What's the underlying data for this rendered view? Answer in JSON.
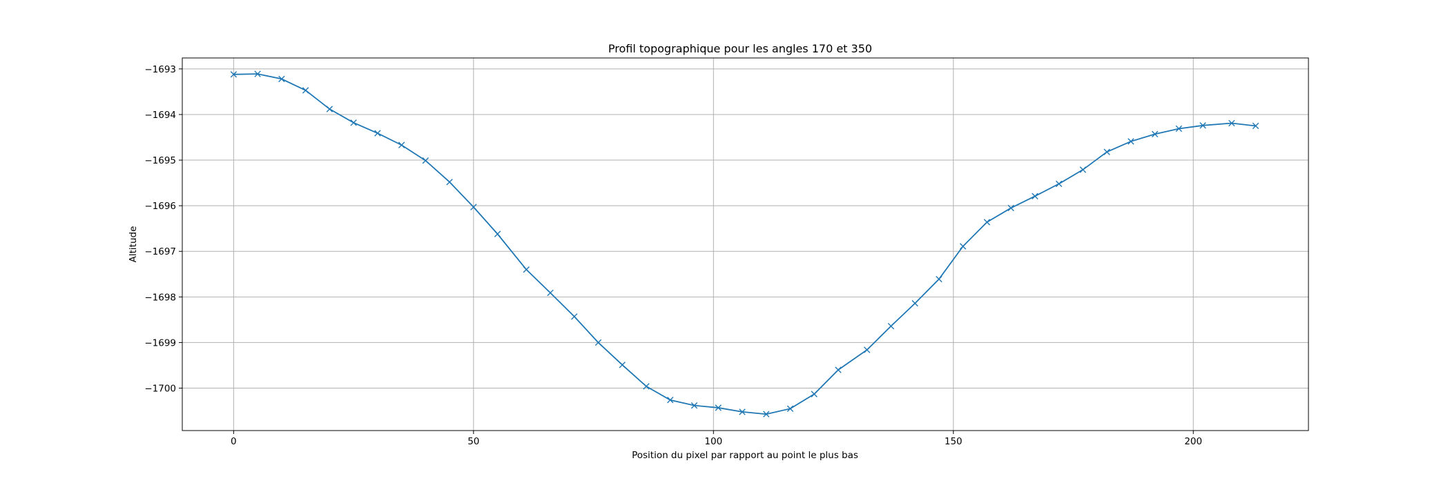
{
  "chart_data": {
    "type": "line",
    "title": "Profil topographique pour les angles 170 et 350",
    "xlabel": "Position du pixel par rapport au point le plus bas",
    "ylabel": "Altitude",
    "xlim": [
      -10.7,
      224
    ],
    "ylim": [
      -1700.93,
      -1692.76
    ],
    "grid": true,
    "marker": "x",
    "color": "#1f77b4",
    "x_ticks": [
      0,
      50,
      100,
      150,
      200
    ],
    "y_ticks": [
      -1693,
      -1694,
      -1695,
      -1696,
      -1697,
      -1698,
      -1699,
      -1700
    ],
    "x_tick_labels": [
      "0",
      "50",
      "100",
      "150",
      "200"
    ],
    "y_tick_labels": [
      "−1693",
      "−1694",
      "−1695",
      "−1696",
      "−1697",
      "−1698",
      "−1699",
      "−1700"
    ],
    "series": [
      {
        "x": [
          0,
          5,
          10,
          15,
          20,
          25,
          30,
          35,
          40,
          45,
          50,
          55,
          61,
          66,
          71,
          76,
          81,
          86,
          91,
          96,
          101,
          106,
          111,
          116,
          121,
          126,
          132,
          137,
          142,
          147,
          152,
          157,
          162,
          167,
          172,
          177,
          182,
          187,
          192,
          197,
          202,
          208,
          213
        ],
        "y": [
          -1693.12,
          -1693.11,
          -1693.22,
          -1693.47,
          -1693.88,
          -1694.18,
          -1694.41,
          -1694.67,
          -1695.01,
          -1695.48,
          -1696.03,
          -1696.62,
          -1697.4,
          -1697.91,
          -1698.43,
          -1699.0,
          -1699.49,
          -1699.96,
          -1700.26,
          -1700.38,
          -1700.43,
          -1700.52,
          -1700.57,
          -1700.45,
          -1700.13,
          -1699.6,
          -1699.16,
          -1698.64,
          -1698.14,
          -1697.61,
          -1696.89,
          -1696.36,
          -1696.05,
          -1695.79,
          -1695.52,
          -1695.21,
          -1694.82,
          -1694.59,
          -1694.43,
          -1694.31,
          -1694.24,
          -1694.19,
          -1694.25
        ]
      }
    ]
  }
}
